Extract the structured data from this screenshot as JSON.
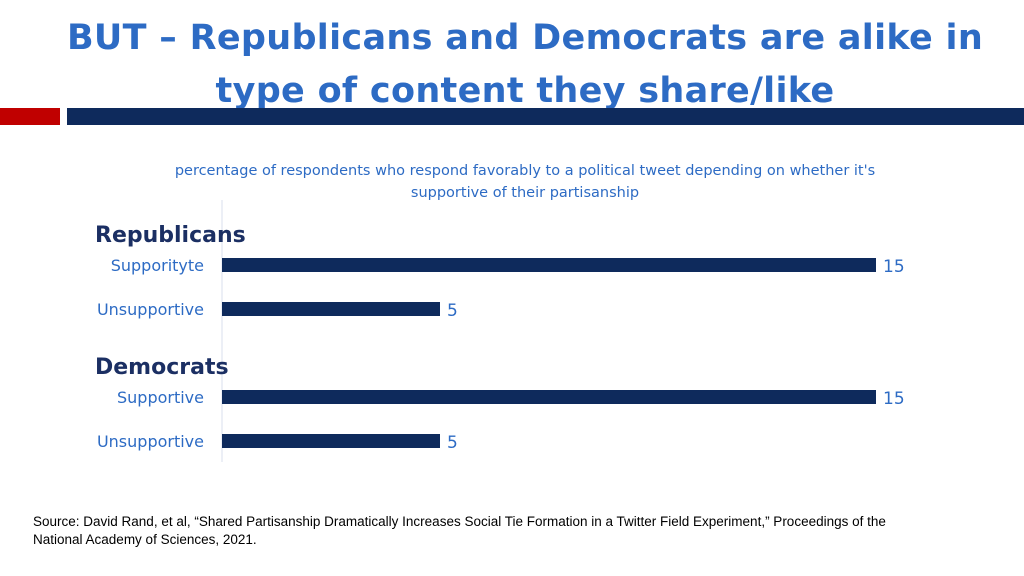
{
  "slide": {
    "title": "BUT – Republicans and Democrats are alike in type of content they share/like",
    "source": "Source: David Rand, et al, “Shared Partisanship Dramatically Increases Social Tie Formation in a Twitter Field Experiment,” Proceedings of the National Academy of Sciences, 2021."
  },
  "colors": {
    "title": "#2d6bc4",
    "bar": "#0e2a5c",
    "group_label": "#1b2f63",
    "accent_red": "#c00000"
  },
  "chart_data": {
    "type": "bar",
    "orientation": "horizontal",
    "title": "percentage of respondents who respond favorably to a political tweet depending on whether it's supportive of their partisanship",
    "xlim": [
      0,
      15
    ],
    "grid": false,
    "groups": [
      {
        "name": "Republicans",
        "bars": [
          {
            "label": "Supporityte",
            "value": 15
          },
          {
            "label": "Unsupportive",
            "value": 5
          }
        ]
      },
      {
        "name": "Democrats",
        "bars": [
          {
            "label": "Supportive",
            "value": 15
          },
          {
            "label": "Unsupportive",
            "value": 5
          }
        ]
      }
    ]
  }
}
